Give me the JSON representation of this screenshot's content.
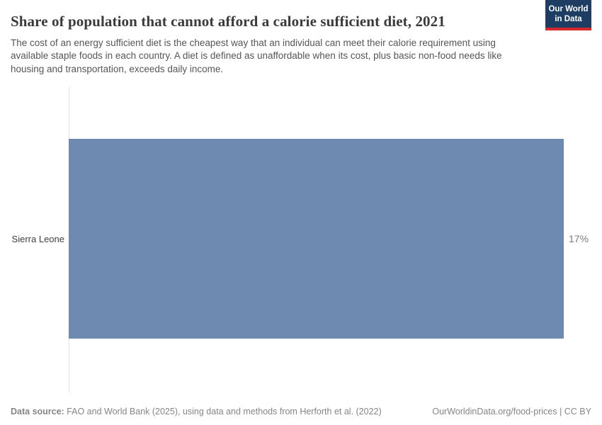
{
  "header": {
    "title": "Share of population that cannot afford a calorie sufficient diet, 2021",
    "subtitle": "The cost of an energy sufficient diet is the cheapest way that an individual can meet their calorie requirement using available staple foods in each country. A diet is defined as unaffordable when its cost, plus basic non-food needs like housing and transportation, exceeds daily income.",
    "logo": {
      "line1": "Our World",
      "line2": "in Data",
      "background_color": "#1d3d63",
      "stripe_color": "#d7282e"
    }
  },
  "chart_data": {
    "type": "bar",
    "orientation": "horizontal",
    "title": "Share of population that cannot afford a calorie sufficient diet, 2021",
    "categories": [
      "Sierra Leone"
    ],
    "values": [
      17
    ],
    "value_labels": [
      "17%"
    ],
    "unit": "%",
    "xlabel": "",
    "ylabel": "",
    "xlim": [
      0,
      17
    ],
    "grid": false,
    "legend": "none",
    "bar_color": "#6e8ab1",
    "axis_line_color": "#e0e0e0"
  },
  "footer": {
    "source_label": "Data source:",
    "source_text": " FAO and World Bank (2025), using data and methods from Herforth et al. (2022)",
    "rights": "OurWorldinData.org/food-prices | CC BY"
  }
}
